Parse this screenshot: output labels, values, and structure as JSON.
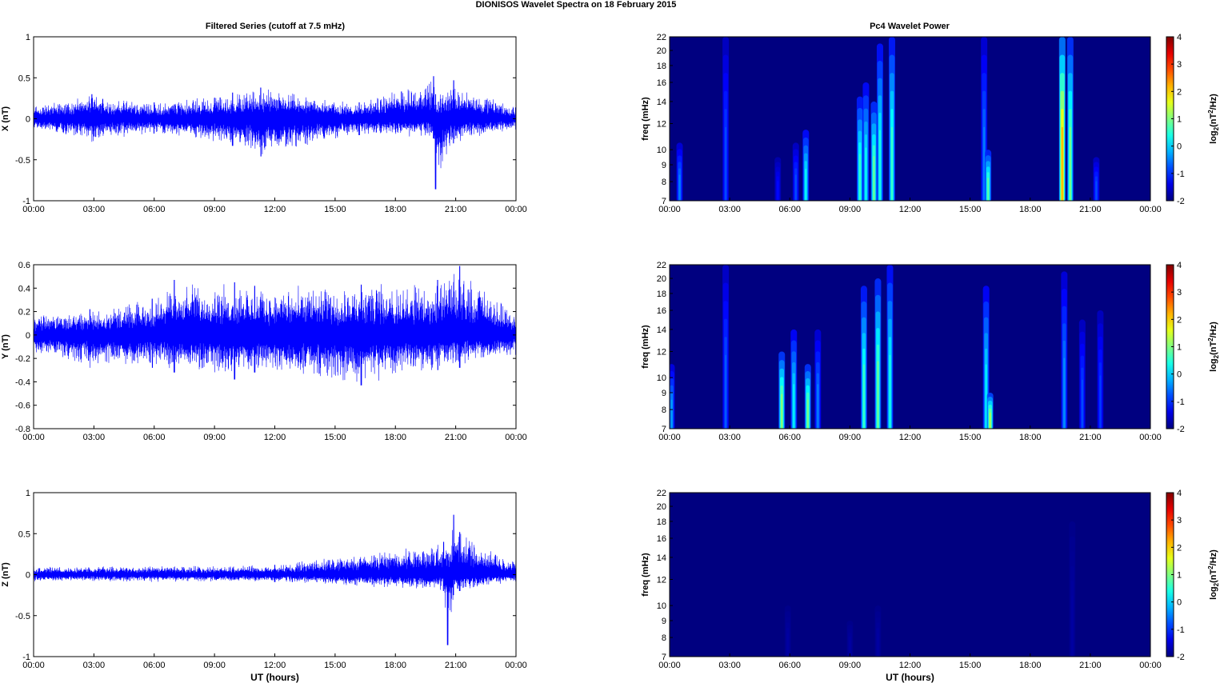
{
  "figure": {
    "title": "DIONISOS Wavelet Spectra on 18 February  2015",
    "left_column_title": "Filtered Series (cutoff at 7.5 mHz)",
    "right_column_title": "Pc4 Wavelet Power",
    "xlabel": "UT (hours)",
    "colorbar_label_base": "log",
    "colorbar_label_sub": "2",
    "colorbar_label_open": "(nT",
    "colorbar_label_sup": "2",
    "colorbar_label_close": "/Hz)",
    "spectrogram_ylabel": "freq (mHz)",
    "x_tick_labels": [
      "00:00",
      "03:00",
      "06:00",
      "09:00",
      "12:00",
      "15:00",
      "18:00",
      "21:00",
      "00:00"
    ],
    "freq_tick_labels": [
      "7",
      "8",
      "9",
      "10",
      "12",
      "14",
      "16",
      "18",
      "20",
      "22"
    ],
    "colorbar_tick_labels": [
      "-2",
      "-1",
      "0",
      "1",
      "2",
      "3",
      "4"
    ],
    "line_color": "#0000ff",
    "colormap": "jet"
  },
  "chart_data": [
    {
      "type": "line",
      "component": "X",
      "ylabel": "X (nT)",
      "ylim": [
        -1,
        1
      ],
      "y_tick_labels": [
        "-1",
        "-0.5",
        "0",
        "0.5",
        "1"
      ],
      "xlim_hours": [
        0,
        24
      ],
      "envelope": [
        {
          "x": 0.0,
          "min": -0.14,
          "max": 0.16
        },
        {
          "x": 2.9,
          "min": -0.28,
          "max": 0.3
        },
        {
          "x": 6.0,
          "min": -0.18,
          "max": 0.2
        },
        {
          "x": 9.9,
          "min": -0.33,
          "max": 0.32
        },
        {
          "x": 11.3,
          "min": -0.46,
          "max": 0.38
        },
        {
          "x": 16.2,
          "min": -0.2,
          "max": 0.2
        },
        {
          "x": 19.9,
          "min": -0.24,
          "max": 0.52
        },
        {
          "x": 20.0,
          "min": -0.86,
          "max": 0.3
        },
        {
          "x": 20.9,
          "min": -0.3,
          "max": 0.47
        },
        {
          "x": 24.0,
          "min": -0.13,
          "max": 0.14
        }
      ]
    },
    {
      "type": "line",
      "component": "Y",
      "ylabel": "Y (nT)",
      "ylim": [
        -0.8,
        0.6
      ],
      "y_tick_labels": [
        "-0.8",
        "-0.6",
        "-0.4",
        "-0.2",
        "0",
        "0.2",
        "0.4",
        "0.6"
      ],
      "xlim_hours": [
        0,
        24
      ],
      "envelope": [
        {
          "x": 0.0,
          "min": -0.17,
          "max": 0.18
        },
        {
          "x": 2.8,
          "min": -0.28,
          "max": 0.22
        },
        {
          "x": 5.9,
          "min": -0.28,
          "max": 0.31
        },
        {
          "x": 7.0,
          "min": -0.32,
          "max": 0.47
        },
        {
          "x": 10.0,
          "min": -0.38,
          "max": 0.45
        },
        {
          "x": 11.0,
          "min": -0.32,
          "max": 0.42
        },
        {
          "x": 16.3,
          "min": -0.43,
          "max": 0.43
        },
        {
          "x": 20.1,
          "min": -0.3,
          "max": 0.47
        },
        {
          "x": 21.2,
          "min": -0.28,
          "max": 0.59
        },
        {
          "x": 24.0,
          "min": -0.17,
          "max": 0.18
        }
      ]
    },
    {
      "type": "line",
      "component": "Z",
      "ylabel": "Z (nT)",
      "ylim": [
        -1,
        1
      ],
      "y_tick_labels": [
        "-1",
        "-0.5",
        "0",
        "0.5",
        "1"
      ],
      "xlim_hours": [
        0,
        24
      ],
      "envelope": [
        {
          "x": 0.0,
          "min": -0.09,
          "max": 0.1
        },
        {
          "x": 12.0,
          "min": -0.09,
          "max": 0.12
        },
        {
          "x": 20.4,
          "min": -0.2,
          "max": 0.4
        },
        {
          "x": 20.6,
          "min": -0.86,
          "max": 0.25
        },
        {
          "x": 20.9,
          "min": -0.25,
          "max": 0.73
        },
        {
          "x": 21.2,
          "min": -0.2,
          "max": 0.52
        },
        {
          "x": 24.0,
          "min": -0.08,
          "max": 0.17
        }
      ]
    },
    {
      "type": "heatmap",
      "component": "X",
      "ylabel": "freq (mHz)",
      "ylim_mhz": [
        7,
        22
      ],
      "zlim": [
        -2,
        4
      ],
      "colormap": "jet",
      "background_level": -2,
      "events": [
        {
          "t": 0.5,
          "fmax": 10.5,
          "level": -0.5
        },
        {
          "t": 2.8,
          "fmax": 22,
          "level": -0.8
        },
        {
          "t": 5.4,
          "fmax": 9.5,
          "level": -1.2
        },
        {
          "t": 6.3,
          "fmax": 10.5,
          "level": -0.8
        },
        {
          "t": 6.8,
          "fmax": 11.5,
          "level": 0.3
        },
        {
          "t": 9.5,
          "fmax": 14.5,
          "level": 0.6
        },
        {
          "t": 9.8,
          "fmax": 16,
          "level": 0.3
        },
        {
          "t": 10.2,
          "fmax": 14,
          "level": 0.9
        },
        {
          "t": 10.5,
          "fmax": 21,
          "level": 0.4
        },
        {
          "t": 11.1,
          "fmax": 22,
          "level": 0.6
        },
        {
          "t": 15.7,
          "fmax": 22,
          "level": -0.5
        },
        {
          "t": 15.9,
          "fmax": 10,
          "level": 0.8
        },
        {
          "t": 19.6,
          "fmax": 22,
          "level": 2.2
        },
        {
          "t": 20.0,
          "fmax": 22,
          "level": 1.0
        },
        {
          "t": 21.3,
          "fmax": 9.5,
          "level": -0.8
        }
      ]
    },
    {
      "type": "heatmap",
      "component": "Y",
      "ylabel": "freq (mHz)",
      "ylim_mhz": [
        7,
        22
      ],
      "zlim": [
        -2,
        4
      ],
      "colormap": "jet",
      "background_level": -2,
      "events": [
        {
          "t": 0.1,
          "fmax": 11,
          "level": -0.3
        },
        {
          "t": 2.8,
          "fmax": 22,
          "level": -0.7
        },
        {
          "t": 5.6,
          "fmax": 12,
          "level": 1.1
        },
        {
          "t": 6.2,
          "fmax": 14,
          "level": 0.2
        },
        {
          "t": 6.9,
          "fmax": 11,
          "level": 1.0
        },
        {
          "t": 7.4,
          "fmax": 14,
          "level": -0.5
        },
        {
          "t": 9.7,
          "fmax": 19,
          "level": 0.6
        },
        {
          "t": 10.4,
          "fmax": 20,
          "level": 0.9
        },
        {
          "t": 11.0,
          "fmax": 22,
          "level": 0.4
        },
        {
          "t": 15.8,
          "fmax": 19,
          "level": 0.2
        },
        {
          "t": 16.0,
          "fmax": 9,
          "level": 1.3
        },
        {
          "t": 19.7,
          "fmax": 21,
          "level": -0.4
        },
        {
          "t": 20.6,
          "fmax": 15,
          "level": -0.8
        },
        {
          "t": 21.5,
          "fmax": 16,
          "level": -0.9
        }
      ]
    },
    {
      "type": "heatmap",
      "component": "Z",
      "ylabel": "freq (mHz)",
      "ylim_mhz": [
        7,
        22
      ],
      "zlim": [
        -2,
        4
      ],
      "colormap": "jet",
      "background_level": -2,
      "events": [
        {
          "t": 5.9,
          "fmax": 10,
          "level": -1.8
        },
        {
          "t": 9.0,
          "fmax": 9,
          "level": -1.8
        },
        {
          "t": 10.4,
          "fmax": 10,
          "level": -1.8
        },
        {
          "t": 20.1,
          "fmax": 18,
          "level": -1.8
        }
      ]
    }
  ]
}
